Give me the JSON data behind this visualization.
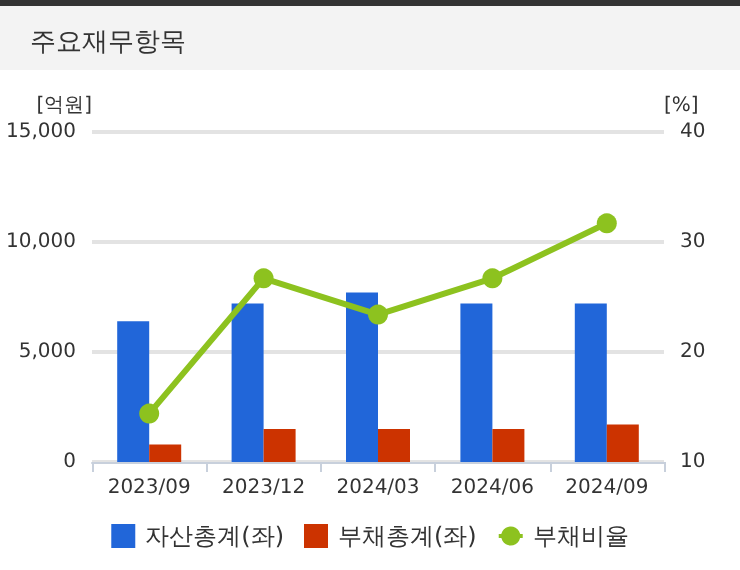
{
  "chart_data": {
    "type": "bar",
    "title": "주요재무항목",
    "ylabel": "[억원]",
    "y2label": "[%]",
    "categories": [
      "2023/09",
      "2023/12",
      "2024/03",
      "2024/06",
      "2024/09"
    ],
    "series": [
      {
        "name": "자산총계(좌)",
        "color": "#2166d9",
        "values": [
          6400,
          7200,
          7700,
          7200,
          7200
        ]
      },
      {
        "name": "부채총계(좌)",
        "color": "#cc3300",
        "values": [
          800,
          1500,
          1500,
          1500,
          1700
        ]
      },
      {
        "name": "부채비율",
        "type": "line",
        "axis": "y2",
        "color": "#8dc21f",
        "marker": "circle",
        "values": [
          14.4,
          26.7,
          23.4,
          26.7,
          31.7
        ]
      }
    ],
    "ylim": [
      0,
      15000
    ],
    "yticks": [
      0,
      {
        "value": 5000,
        "label": "5,000"
      },
      {
        "value": 10000,
        "label": "10,000"
      },
      {
        "value": 15000,
        "label": "15,000"
      }
    ],
    "y2lim": [
      10,
      40
    ],
    "y2ticks": [
      10,
      20,
      30,
      40
    ],
    "grid": "y",
    "legend": "bottom"
  }
}
